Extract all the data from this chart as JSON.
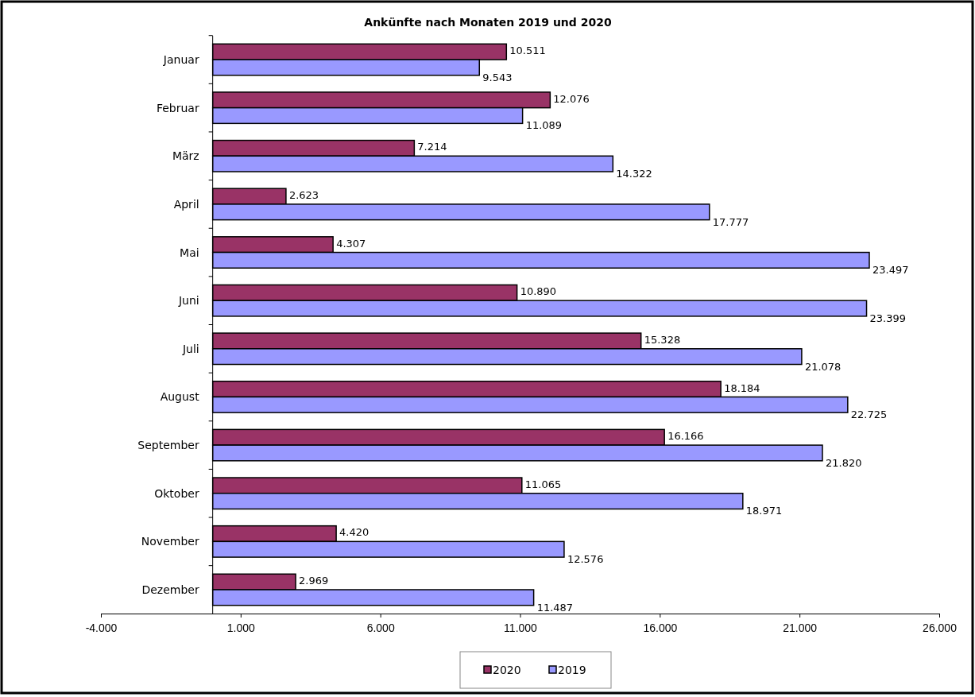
{
  "chart_data": {
    "type": "bar",
    "orientation": "horizontal",
    "title": "Ankünfte nach Monaten 2019 und 2020",
    "categories": [
      "Januar",
      "Februar",
      "März",
      "April",
      "Mai",
      "Juni",
      "Juli",
      "August",
      "September",
      "Oktober",
      "November",
      "Dezember"
    ],
    "series": [
      {
        "name": "2020",
        "color": "#993366",
        "values": [
          10511,
          12076,
          7214,
          2623,
          4307,
          10890,
          15328,
          18184,
          16166,
          11065,
          4420,
          2969
        ],
        "value_labels": [
          "10.511",
          "12.076",
          "7.214",
          "2.623",
          "4.307",
          "10.890",
          "15.328",
          "18.184",
          "16.166",
          "11.065",
          "4.420",
          "2.969"
        ]
      },
      {
        "name": "2019",
        "color": "#9999ff",
        "values": [
          9543,
          11089,
          14322,
          17777,
          23497,
          23399,
          21078,
          22725,
          21820,
          18971,
          12576,
          11487
        ],
        "value_labels": [
          "9.543",
          "11.089",
          "14.322",
          "17.777",
          "23.497",
          "23.399",
          "21.078",
          "22.725",
          "21.820",
          "18.971",
          "12.576",
          "11.487"
        ]
      }
    ],
    "xlim": [
      -4000,
      26000
    ],
    "xticks": [
      {
        "value": -4000,
        "label": "-4.000"
      },
      {
        "value": 1000,
        "label": "1.000"
      },
      {
        "value": 6000,
        "label": "6.000"
      },
      {
        "value": 11000,
        "label": "11.000"
      },
      {
        "value": 16000,
        "label": "16.000"
      },
      {
        "value": 21000,
        "label": "21.000"
      },
      {
        "value": 26000,
        "label": "26.000"
      }
    ],
    "grid": false,
    "legend": "bottom"
  }
}
